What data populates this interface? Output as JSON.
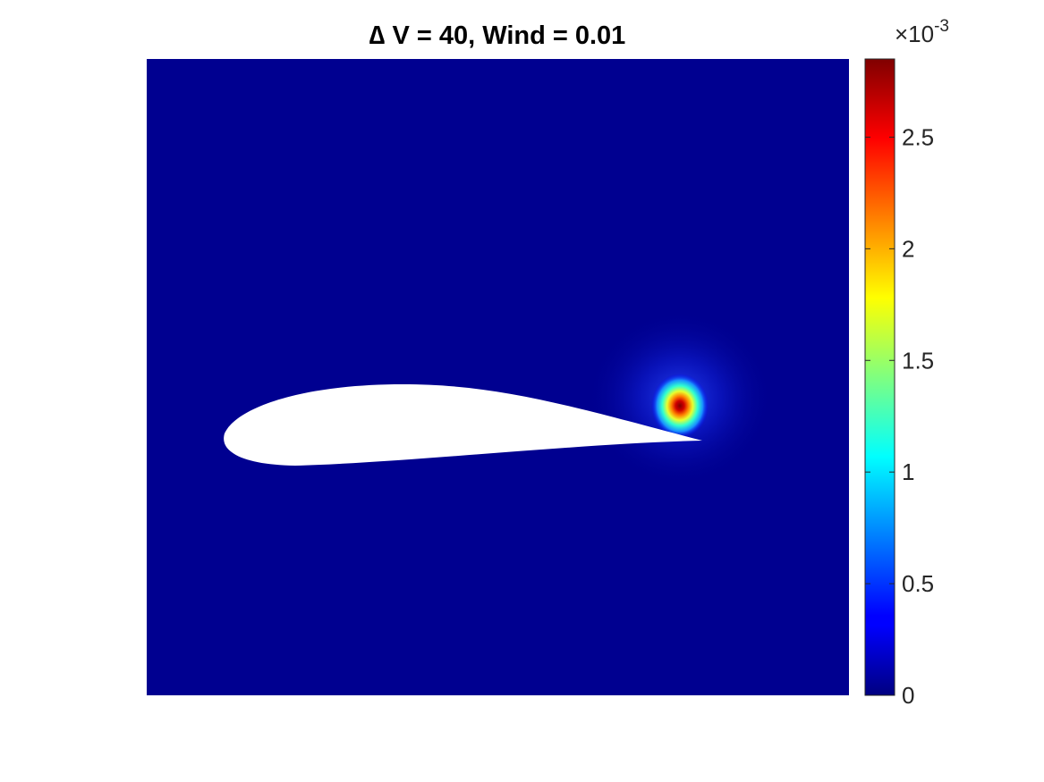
{
  "chart_data": {
    "type": "heatmap",
    "title": "∆ V = 40, Wind = 0.01",
    "xlabel": "",
    "ylabel": "",
    "axis_ticks_visible": false,
    "background_value": 0,
    "obstacle": {
      "shape": "airfoil",
      "color": "#ffffff"
    },
    "hotspot": {
      "location": "just above the airfoil trailing edge",
      "peak_value": 0.00285
    },
    "colorbar": {
      "colormap": "jet",
      "placement": "right",
      "range": [
        0,
        0.00285
      ],
      "ticks": [
        0,
        0.0005,
        0.001,
        0.0015,
        0.002,
        0.0025
      ],
      "tick_labels": [
        "0",
        "0.5",
        "1",
        "1.5",
        "2",
        "2.5"
      ],
      "multiplier_base": "×10",
      "multiplier_exponent": "-3"
    }
  }
}
